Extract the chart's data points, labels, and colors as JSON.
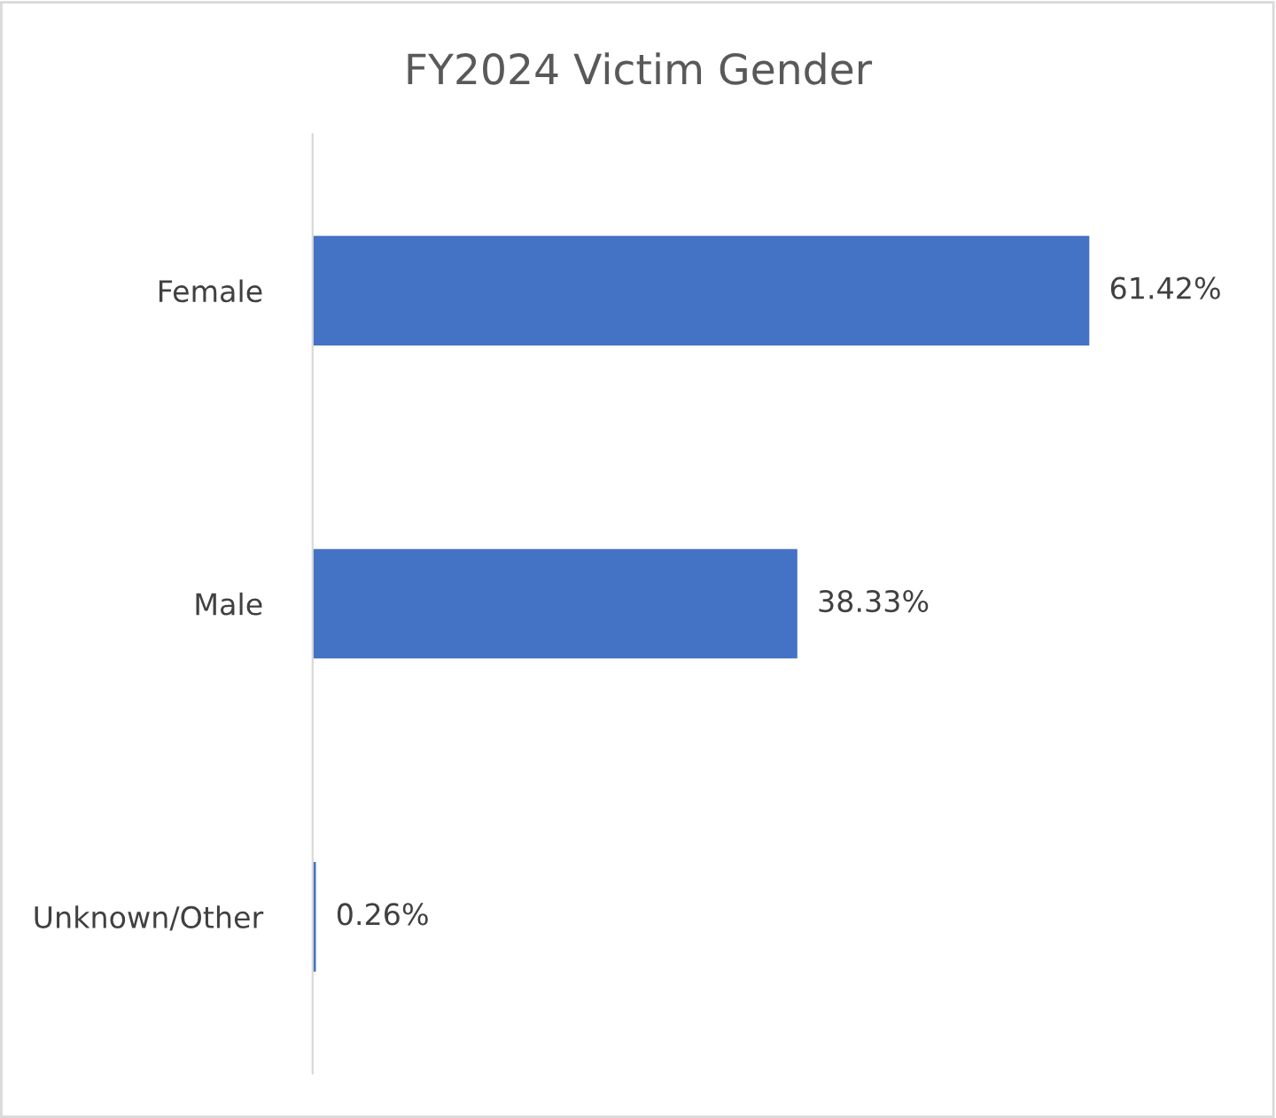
{
  "chart_data": {
    "type": "bar",
    "orientation": "horizontal",
    "title": "FY2024 Victim Gender",
    "categories": [
      "Female",
      "Male",
      "Unknown/Other"
    ],
    "values": [
      61.42,
      38.33,
      0.26
    ],
    "value_labels": [
      "61.42%",
      "38.33%",
      "0.26%"
    ],
    "color": "#4472c4",
    "grid": false,
    "legend": false
  }
}
